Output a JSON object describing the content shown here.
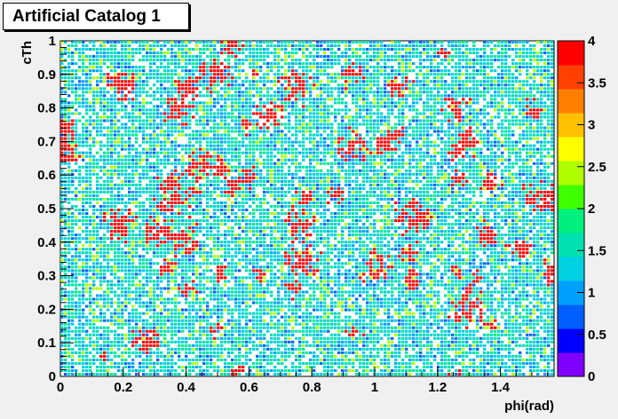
{
  "title": "Artificial Catalog 1",
  "chart_data": {
    "type": "heatmap",
    "title": "Artificial Catalog 1",
    "xlabel": "phi(rad)",
    "ylabel": "cTh",
    "xlim": [
      0,
      1.5708
    ],
    "ylim": [
      0,
      1
    ],
    "zlim": [
      0,
      4
    ],
    "x_ticks": [
      "0",
      "0.2",
      "0.4",
      "0.6",
      "0.8",
      "1",
      "1.2",
      "1.4"
    ],
    "y_ticks": [
      "0",
      "0.1",
      "0.2",
      "0.3",
      "0.4",
      "0.5",
      "0.6",
      "0.7",
      "0.8",
      "0.9",
      "1"
    ],
    "z_ticks": [
      "0",
      "0.5",
      "1",
      "1.5",
      "2",
      "2.5",
      "3",
      "3.5",
      "4"
    ],
    "palette": [
      "#8000ff",
      "#0000ff",
      "#0060ff",
      "#00a0ff",
      "#00d0e0",
      "#00e0b0",
      "#00f080",
      "#40ff00",
      "#b0ff00",
      "#ffff00",
      "#ffc000",
      "#ff8000",
      "#ff4000",
      "#ff0000"
    ],
    "grid": false,
    "legend": "right color bar"
  }
}
